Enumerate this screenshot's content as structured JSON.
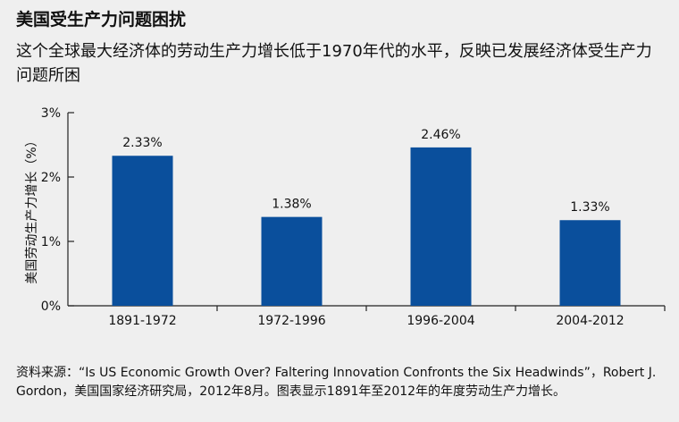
{
  "title": "美国受生产力问题困扰",
  "subtitle": "这个全球最大经济体的劳动生产力增长低于1970年代的水平，反映已发展经济体受生产力问题所困",
  "source": "资料来源：“Is US Economic Growth Over? Faltering Innovation Confronts the Six Headwinds”，Robert J. Gordon，美国国家经济研究局，2012年8月。图表显示1891年至2012年的年度劳动生产力增长。",
  "colors": {
    "bar": "#0a4f9c",
    "background": "#efefef",
    "axis": "#222222"
  },
  "chart_data": {
    "type": "bar",
    "categories": [
      "1891-1972",
      "1972-1996",
      "1996-2004",
      "2004-2012"
    ],
    "values": [
      2.33,
      1.38,
      2.46,
      1.33
    ],
    "data_labels": [
      "2.33%",
      "1.38%",
      "2.46%",
      "1.33%"
    ],
    "ylabel": "美国劳动生产力增长（%）",
    "xlabel": "",
    "ylim": [
      0,
      3
    ],
    "yticks": [
      0,
      1,
      2,
      3
    ],
    "ytick_labels": [
      "0%",
      "1%",
      "2%",
      "3%"
    ],
    "grid": false,
    "legend": "none"
  }
}
